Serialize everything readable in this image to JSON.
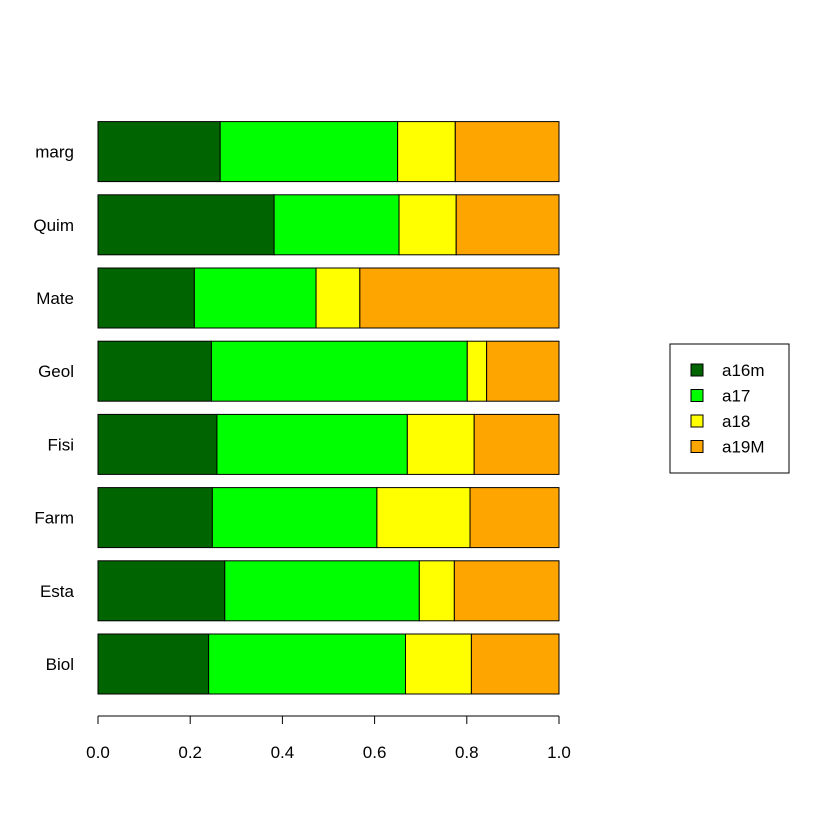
{
  "chart_data": {
    "type": "bar",
    "orientation": "horizontal",
    "stacked": true,
    "title": "",
    "xlabel": "",
    "ylabel": "",
    "xlim": [
      0,
      1
    ],
    "x_ticks": [
      "0.0",
      "0.2",
      "0.4",
      "0.6",
      "0.8",
      "1.0"
    ],
    "x_tick_values": [
      0,
      0.2,
      0.4,
      0.6,
      0.8,
      1.0
    ],
    "categories": [
      "Biol",
      "Esta",
      "Farm",
      "Fisi",
      "Geol",
      "Mate",
      "Quim",
      "marg"
    ],
    "series": [
      {
        "name": "a16m",
        "color": "#006400",
        "values": [
          0.24,
          0.275,
          0.248,
          0.258,
          0.246,
          0.209,
          0.382,
          0.265
        ]
      },
      {
        "name": "a17",
        "color": "#00ff00",
        "values": [
          0.427,
          0.422,
          0.357,
          0.413,
          0.555,
          0.264,
          0.271,
          0.385
        ]
      },
      {
        "name": "a18",
        "color": "#ffff00",
        "values": [
          0.143,
          0.076,
          0.202,
          0.145,
          0.042,
          0.095,
          0.124,
          0.125
        ]
      },
      {
        "name": "a19M",
        "color": "#ffa500",
        "values": [
          0.19,
          0.227,
          0.193,
          0.184,
          0.157,
          0.432,
          0.223,
          0.225
        ]
      }
    ],
    "grid": false,
    "legend_position": "right"
  }
}
